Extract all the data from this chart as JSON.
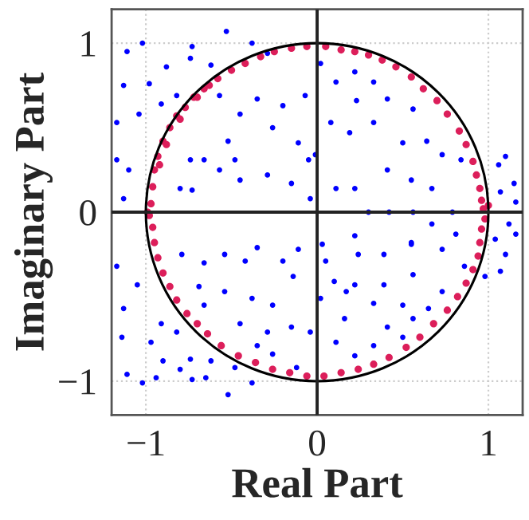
{
  "chart_data": {
    "type": "scatter",
    "xlabel": "Real Part",
    "ylabel": "Imaginary Part",
    "xlim": [
      -1.2,
      1.2
    ],
    "ylim": [
      -1.2,
      1.2
    ],
    "xticks": [
      {
        "value": -1,
        "label": "−1"
      },
      0,
      1
    ],
    "yticks": [
      {
        "value": -1,
        "label": "−1"
      },
      0,
      1
    ],
    "grid": true,
    "legend": false,
    "marker": "circle",
    "series": [
      {
        "color": "#0000ff",
        "x": [
          -1.02,
          -1.11,
          -0.53,
          -0.73,
          -0.88,
          -1.13,
          -0.98,
          -1.04,
          -1.17,
          -1.1,
          -1.13,
          -1.17,
          -0.74,
          -0.62,
          -0.38,
          -0.29,
          -0.57,
          -0.45,
          -0.35,
          -0.2,
          -0.07,
          -0.26,
          -0.52,
          -0.66,
          -0.74,
          -0.57,
          -0.45,
          -0.29,
          -0.15,
          -0.8,
          -0.73,
          -0.11,
          -0.82,
          -0.91,
          -0.05,
          -0.48,
          0.11,
          0.23,
          0.41,
          0.33,
          0.22,
          0.02,
          0.08,
          0.19,
          0.33,
          0.5,
          0.56,
          0.64,
          0.73,
          0.84,
          0.41,
          0.55,
          0.67,
          0.11,
          0.22,
          0.3,
          0.42,
          0.56,
          0.79,
          1.06,
          1.1,
          1.15,
          1.07,
          1.16,
          1.12,
          1.04,
          1.16,
          0.67,
          0.22,
          0.03,
          0.55,
          0.81,
          -0.04,
          -0.01,
          -1.17,
          -1.05,
          -1.13,
          -1.14,
          -0.91,
          -0.97,
          -0.9,
          -1.11,
          -1.02,
          -0.94,
          -0.8,
          -0.74,
          -0.73,
          -0.65,
          -0.52,
          -0.38,
          -0.62,
          -0.48,
          -0.79,
          -0.66,
          -0.54,
          -0.42,
          -0.35,
          -0.2,
          -0.69,
          -0.54,
          -0.38,
          -0.26,
          -0.14,
          -0.66,
          -0.45,
          -0.29,
          -0.15,
          -0.82,
          -0.12,
          -0.26,
          -0.35,
          -0.11,
          0.05,
          0.24,
          0.39,
          0.55,
          0.73,
          0.86,
          0.98,
          1.07,
          1.1,
          0.1,
          0.22,
          0.39,
          0.56,
          0.73,
          0.17,
          0.33,
          0.5,
          0.65,
          0.16,
          0.41,
          0.56,
          0.5,
          0.11,
          0.22,
          0.33,
          0.02,
          -0.04
        ],
        "values": [
          1.0,
          0.95,
          1.07,
          0.98,
          0.86,
          0.75,
          0.76,
          0.58,
          0.53,
          0.25,
          0.08,
          0.31,
          0.91,
          0.87,
          1.0,
          0.94,
          0.69,
          0.58,
          0.67,
          0.63,
          0.69,
          0.5,
          0.42,
          0.31,
          0.31,
          0.25,
          0.19,
          0.22,
          0.17,
          0.14,
          0.13,
          0.41,
          0.69,
          0.64,
          0.31,
          0.31,
          0.77,
          0.66,
          0.67,
          0.77,
          0.83,
          0.88,
          0.53,
          0.47,
          0.53,
          0.41,
          0.61,
          0.42,
          0.34,
          0.31,
          0.25,
          0.19,
          0.14,
          0.14,
          0.14,
          0.0,
          0.0,
          0.0,
          0.0,
          0.28,
          0.33,
          0.17,
          0.12,
          0.06,
          -0.07,
          -0.16,
          -0.13,
          -0.07,
          -0.14,
          -0.19,
          -0.18,
          -0.13,
          0.08,
          0.34,
          -0.32,
          -0.43,
          -0.57,
          -0.74,
          -0.66,
          -0.77,
          -0.88,
          -0.96,
          -1.01,
          -0.98,
          -0.93,
          -0.87,
          -0.99,
          -0.98,
          -1.08,
          -1.01,
          -0.88,
          -0.92,
          -0.25,
          -0.3,
          -0.25,
          -0.29,
          -0.21,
          -0.29,
          -0.44,
          -0.47,
          -0.51,
          -0.55,
          -0.38,
          -0.55,
          -0.66,
          -0.71,
          -0.68,
          -0.71,
          -0.92,
          -0.84,
          -0.79,
          -0.22,
          -0.29,
          -0.25,
          -0.25,
          -0.19,
          -0.22,
          -0.32,
          -0.38,
          -0.35,
          -0.25,
          -0.41,
          -0.43,
          -0.43,
          -0.37,
          -0.47,
          -0.47,
          -0.54,
          -0.55,
          -0.57,
          -0.63,
          -0.68,
          -0.63,
          -0.74,
          -0.77,
          -0.85,
          -0.79,
          -0.51,
          -0.71
        ]
      },
      {
        "color": "#dc1e5a",
        "x": [
          -0.97,
          -0.96,
          -0.95,
          -0.93,
          -0.9,
          -0.86,
          -0.82,
          -0.77,
          -0.72,
          -0.66,
          -0.58,
          -0.5,
          -0.42,
          -0.33,
          -0.25,
          -0.15,
          -0.06,
          -0.92,
          -0.88,
          -0.8,
          -0.7,
          -0.63,
          0.05,
          0.14,
          0.22,
          0.3,
          0.38,
          0.46,
          0.55,
          0.62,
          0.7,
          0.76,
          0.83,
          0.87,
          0.91,
          0.93,
          0.95,
          0.96,
          0.97,
          1.0,
          0.98,
          0.96,
          0.95,
          0.94,
          0.91,
          0.87,
          0.82,
          0.76,
          0.68,
          0.6,
          0.52,
          0.42,
          0.33,
          0.24,
          0.14,
          0.04,
          -0.06,
          -0.16,
          -0.26,
          -0.36,
          -0.46,
          -0.56,
          -0.64,
          -0.7,
          -0.76,
          -0.82,
          -0.86,
          -0.9,
          -0.93,
          -0.95,
          -0.96,
          -0.98,
          -0.99
        ],
        "values": [
          0.05,
          0.15,
          0.25,
          0.33,
          0.42,
          0.5,
          0.57,
          0.62,
          0.68,
          0.73,
          0.79,
          0.84,
          0.88,
          0.92,
          0.95,
          0.97,
          0.98,
          0.28,
          0.4,
          0.55,
          0.68,
          0.75,
          0.98,
          0.96,
          0.95,
          0.93,
          0.9,
          0.86,
          0.8,
          0.73,
          0.66,
          0.58,
          0.48,
          0.4,
          0.3,
          0.22,
          0.14,
          0.07,
          0.02,
          0.04,
          -0.04,
          -0.1,
          -0.18,
          -0.26,
          -0.34,
          -0.42,
          -0.5,
          -0.58,
          -0.66,
          -0.74,
          -0.8,
          -0.86,
          -0.9,
          -0.93,
          -0.95,
          -0.97,
          -0.97,
          -0.95,
          -0.93,
          -0.89,
          -0.85,
          -0.79,
          -0.72,
          -0.66,
          -0.6,
          -0.52,
          -0.44,
          -0.36,
          -0.27,
          -0.18,
          -0.09,
          -0.02,
          0.0
        ]
      }
    ]
  }
}
